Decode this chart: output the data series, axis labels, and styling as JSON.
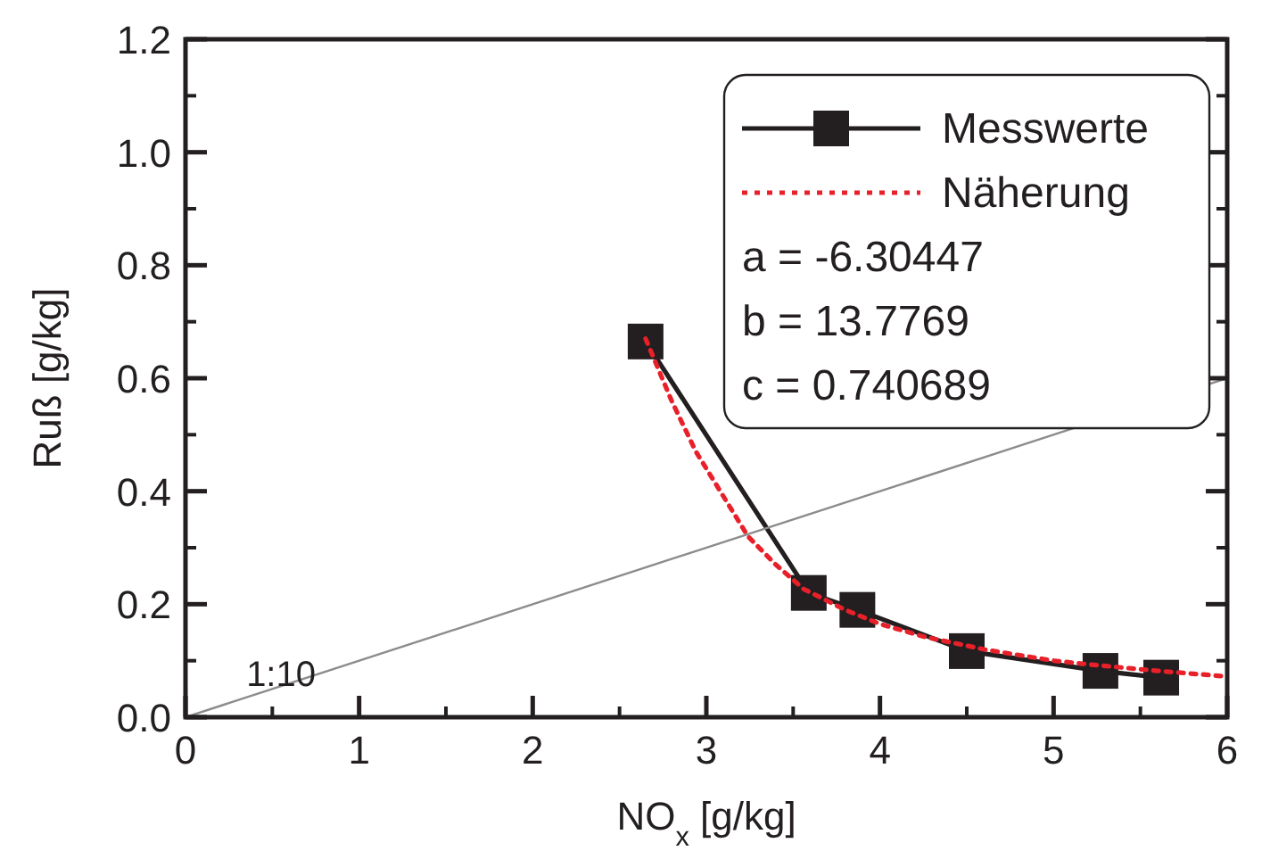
{
  "chart_data": {
    "type": "line",
    "xlabel": "NO$_{x}$ [g/kg]",
    "ylabel": "Ruß [g/kg]",
    "xlim": [
      0,
      6
    ],
    "ylim": [
      0,
      1.2
    ],
    "xticks": [
      0,
      1,
      2,
      3,
      4,
      5,
      6
    ],
    "yticks": [
      {
        "value": 0,
        "label": "0.0"
      },
      0.2,
      0.4,
      0.6,
      0.8,
      {
        "value": 1,
        "label": "1.0"
      },
      1.2
    ],
    "legend": "top right",
    "grid": false,
    "series": [
      {
        "name": "Messwerte",
        "color": "#231f20",
        "marker": "square",
        "line_style": "solid",
        "x": [
          2.65,
          3.59,
          3.87,
          4.5,
          5.27,
          5.62
        ],
        "values": [
          0.665,
          0.22,
          0.19,
          0.117,
          0.082,
          0.07
        ]
      },
      {
        "name": "Näherung",
        "color": "#e8202a",
        "marker": "none",
        "line_style": "dotted",
        "x": [
          2.65,
          2.8,
          2.94,
          3.1,
          3.24,
          3.4,
          3.56,
          3.8,
          4.0,
          4.26,
          4.6,
          5.0,
          5.25,
          5.6,
          6.0
        ],
        "values": [
          0.67,
          0.56,
          0.47,
          0.39,
          0.32,
          0.27,
          0.227,
          0.19,
          0.165,
          0.142,
          0.12,
          0.1,
          0.092,
          0.082,
          0.072
        ]
      },
      {
        "color": "#8c8c8c",
        "marker": "none",
        "line_style": "solid",
        "x": [
          0,
          6
        ],
        "values": [
          0,
          0.6
        ]
      }
    ],
    "annotations": [
      "a = -6.30447",
      "b = 13.7769",
      "c = 0.740689",
      {
        "text": "1:10",
        "x": 0.55,
        "y": 0.055
      }
    ]
  }
}
